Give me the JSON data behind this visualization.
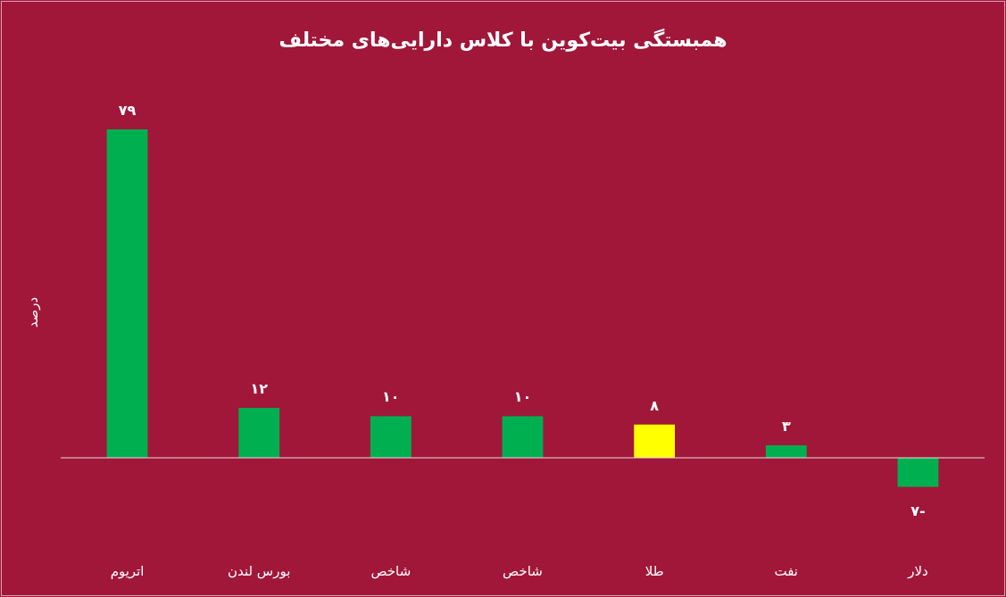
{
  "chart_data": {
    "type": "bar",
    "title": "همبستگی بیت‌کوین با کلاس دارایی‌های مختلف",
    "ylabel": "درصد",
    "categories": [
      "اتریوم",
      "بورس لندن",
      "شاخص",
      "شاخص",
      "طلا",
      "نفت",
      "دلار"
    ],
    "values": [
      79,
      12,
      10,
      10,
      8,
      3,
      -7
    ],
    "colors": [
      "#00b050",
      "#00b050",
      "#00b050",
      "#00b050",
      "#ffff00",
      "#00b050",
      "#00b050"
    ],
    "value_labels": [
      "۷۹",
      "۱۲",
      "۱۰",
      "۱۰",
      "۸",
      "۳",
      "-۷"
    ]
  }
}
